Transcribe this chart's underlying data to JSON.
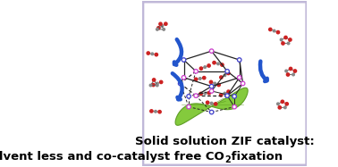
{
  "title_line1": "Solid solution ZIF catalyst:",
  "title_line2": "Solvent less and co-catalyst free CO",
  "title_subscript": "2",
  "title_end": " fixation",
  "bg_color": "#ffffff",
  "border_color": "#c0b8d8",
  "title_fontsize": 9.5,
  "leaf_color": "#7dc832",
  "leaf_edge_color": "#5a9a20",
  "blue_node_color": "#4444cc",
  "pink_node_color": "#cc44cc",
  "co2_color_C": "#888888",
  "co2_color_O": "#cc2222",
  "arrow_color": "#2255cc",
  "edge_color": "#222222"
}
